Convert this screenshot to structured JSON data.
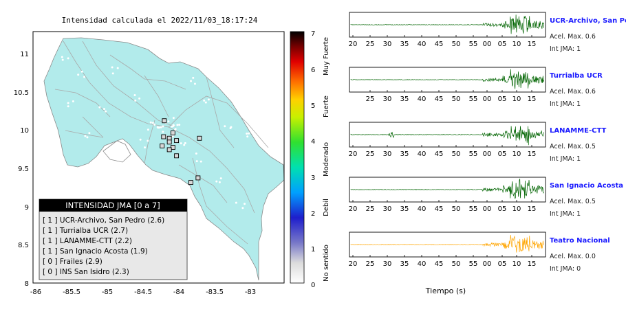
{
  "map": {
    "title": "Intensidad calculada el 2022/11/03_18:17:24",
    "lon_ticks": [
      "-86",
      "-85.5",
      "-85",
      "-84.5",
      "-84",
      "-83.5",
      "-83"
    ],
    "lat_ticks": [
      "11",
      "10.5",
      "10",
      "9.5",
      "9",
      "8.5",
      "8"
    ],
    "colorbar": {
      "ticks": [
        "7",
        "6",
        "5",
        "4",
        "3",
        "2",
        "1",
        "0"
      ],
      "labels": [
        "Muy Fuerte",
        "Fuerte",
        "Moderado",
        "Debil",
        "No sentido"
      ]
    },
    "legend": {
      "title": "INTENSIDAD JMA [0 a 7]",
      "items": [
        "[ 1 ]  UCR-Archivo, San Pedro (2.6)",
        "[ 1 ]  Turrialba UCR (2.7)",
        "[ 1 ]  LANAMME-CTT (2.2)",
        "[ 1 ]  San Ignacio Acosta (1.9)",
        "[ 0 ]  Frailes (2.9)",
        "[ 0 ]  INS San Isidro (2.3)"
      ]
    },
    "colors": {
      "land": "#b2ebeb",
      "roads": "#a9a9a9"
    }
  },
  "traces": [
    {
      "name": "UCR-Archivo, San Pedro",
      "accel": "Acel. Max. 0.6",
      "jma": "Int JMA: 1",
      "ticks": [
        "20",
        "25",
        "30",
        "35",
        "40",
        "45",
        "50",
        "55",
        "00",
        "05",
        "10",
        "15"
      ],
      "color": "#006400"
    },
    {
      "name": "Turrialba UCR",
      "accel": "Acel. Max. 0.6",
      "jma": "Int JMA: 1",
      "ticks": [
        "25",
        "30",
        "35",
        "40",
        "45",
        "50",
        "55",
        "00",
        "05",
        "10",
        "15"
      ],
      "color": "#006400"
    },
    {
      "name": "LANAMME-CTT",
      "accel": "Acel. Max. 0.5",
      "jma": "Int JMA: 1",
      "ticks": [
        "20",
        "25",
        "30",
        "35",
        "40",
        "45",
        "50",
        "55",
        "00",
        "05",
        "10",
        "15"
      ],
      "color": "#006400"
    },
    {
      "name": "San Ignacio Acosta",
      "accel": "Acel. Max. 0.5",
      "jma": "Int JMA: 1",
      "ticks": [
        "20",
        "25",
        "30",
        "35",
        "40",
        "45",
        "50",
        "55",
        "00",
        "05",
        "10",
        "15"
      ],
      "color": "#006400"
    },
    {
      "name": "Teatro Nacional",
      "accel": "Acel. Max. 0.0",
      "jma": "Int JMA: 0",
      "ticks": [
        "20",
        "25",
        "30",
        "35",
        "40",
        "45",
        "50",
        "55",
        "00",
        "05",
        "10",
        "15"
      ],
      "color": "#ffa500"
    }
  ],
  "xlabel": "Tiempo (s)",
  "chart_data": {
    "type": "map",
    "title": "Intensidad calculada el 2022/11/03_18:17:24",
    "xlim": [
      -86,
      -82.5
    ],
    "ylim": [
      8,
      11.3
    ],
    "colorbar_range": [
      0,
      7
    ],
    "stations": [
      {
        "lon": -84.17,
        "lat": 10.13
      },
      {
        "lon": -84.05,
        "lat": 9.97
      },
      {
        "lon": -84.18,
        "lat": 9.92
      },
      {
        "lon": -84.1,
        "lat": 9.9
      },
      {
        "lon": -84.0,
        "lat": 9.87
      },
      {
        "lon": -84.1,
        "lat": 9.85
      },
      {
        "lon": -84.2,
        "lat": 9.8
      },
      {
        "lon": -84.05,
        "lat": 9.78
      },
      {
        "lon": -84.0,
        "lat": 9.67
      },
      {
        "lon": -83.68,
        "lat": 9.9
      },
      {
        "lon": -83.7,
        "lat": 9.38
      },
      {
        "lon": -83.8,
        "lat": 9.32
      },
      {
        "lon": -84.1,
        "lat": 9.75
      }
    ]
  }
}
